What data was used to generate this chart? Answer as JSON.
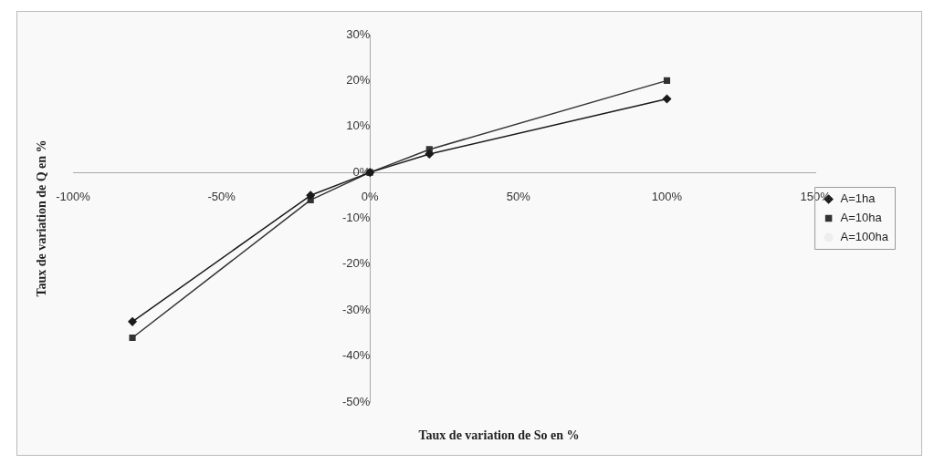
{
  "chart_data": {
    "type": "line",
    "xlabel": "Taux de variation de So en %",
    "ylabel": "Taux de variation de Q en %",
    "x": [
      -80,
      -20,
      0,
      20,
      100
    ],
    "series": [
      {
        "name": "A=1ha",
        "color": "#1a1a1a",
        "marker": "diamond",
        "values": [
          -32.5,
          -5,
          0,
          4,
          16
        ]
      },
      {
        "name": "A=10ha",
        "color": "#333333",
        "marker": "square",
        "values": [
          -36,
          -6,
          0,
          5,
          20
        ]
      },
      {
        "name": "A=100ha",
        "color": "#eeeeee",
        "marker": "none",
        "values": [
          null,
          null,
          null,
          null,
          null
        ]
      }
    ],
    "xlim": [
      -100,
      150
    ],
    "xticks": [
      {
        "value": -100,
        "label": "-100%"
      },
      {
        "value": -50,
        "label": "-50%"
      },
      {
        "value": 0,
        "label": "0%"
      },
      {
        "value": 50,
        "label": "50%"
      },
      {
        "value": 100,
        "label": "100%"
      },
      {
        "value": 150,
        "label": "150%"
      }
    ],
    "ylim": [
      -50,
      30
    ],
    "yticks": [
      {
        "value": -50,
        "label": "-50%"
      },
      {
        "value": -40,
        "label": "-40%"
      },
      {
        "value": -30,
        "label": "-30%"
      },
      {
        "value": -20,
        "label": "-20%"
      },
      {
        "value": -10,
        "label": "-10%"
      },
      {
        "value": 0,
        "label": "0%"
      },
      {
        "value": 10,
        "label": "10%"
      },
      {
        "value": 20,
        "label": "20%"
      },
      {
        "value": 30,
        "label": "30%"
      }
    ],
    "grid": false,
    "legend": "right",
    "line_style": "solid"
  }
}
